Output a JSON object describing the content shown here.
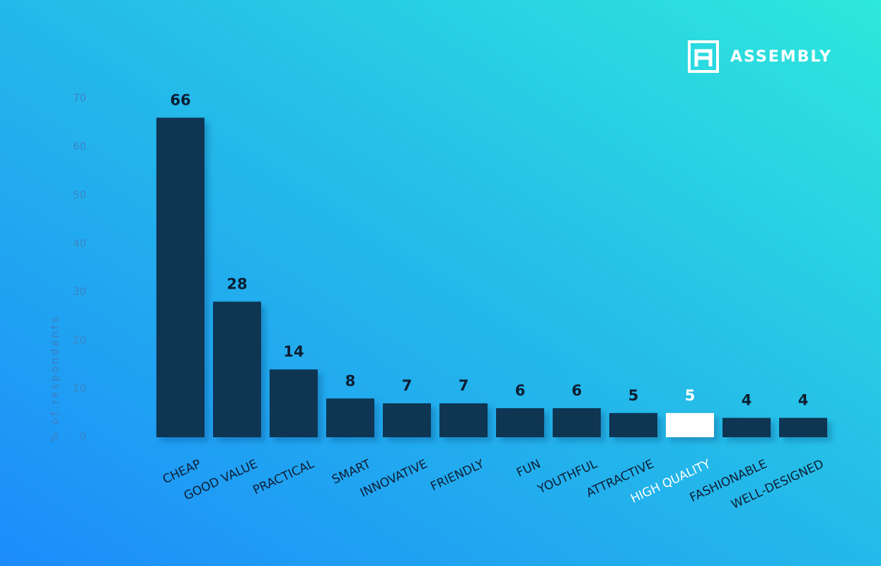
{
  "brand": "ASSEMBLY",
  "chart_data": {
    "type": "bar",
    "y_label": "% of respondants",
    "categories": [
      "CHEAP",
      "GOOD VALUE",
      "PRACTICAL",
      "SMART",
      "INNOVATIVE",
      "FRIENDLY",
      "FUN",
      "YOUTHFUL",
      "ATTRACTIVE",
      "HIGH QUALITY",
      "FASHIONABLE",
      "WELL-DESIGNED"
    ],
    "values": [
      66,
      28,
      14,
      8,
      7,
      7,
      6,
      6,
      5,
      5,
      4,
      4
    ],
    "colors": [
      "#0e3552",
      "#0e3552",
      "#0e3552",
      "#0e3552",
      "#0e3552",
      "#0e3552",
      "#0e3552",
      "#0e3552",
      "#0e3552",
      "#ffffff",
      "#0e3552",
      "#0e3552"
    ],
    "ylim": [
      0,
      70
    ],
    "yticks": [
      0,
      10,
      20,
      30,
      40,
      50,
      60,
      70
    ],
    "grid": false
  }
}
